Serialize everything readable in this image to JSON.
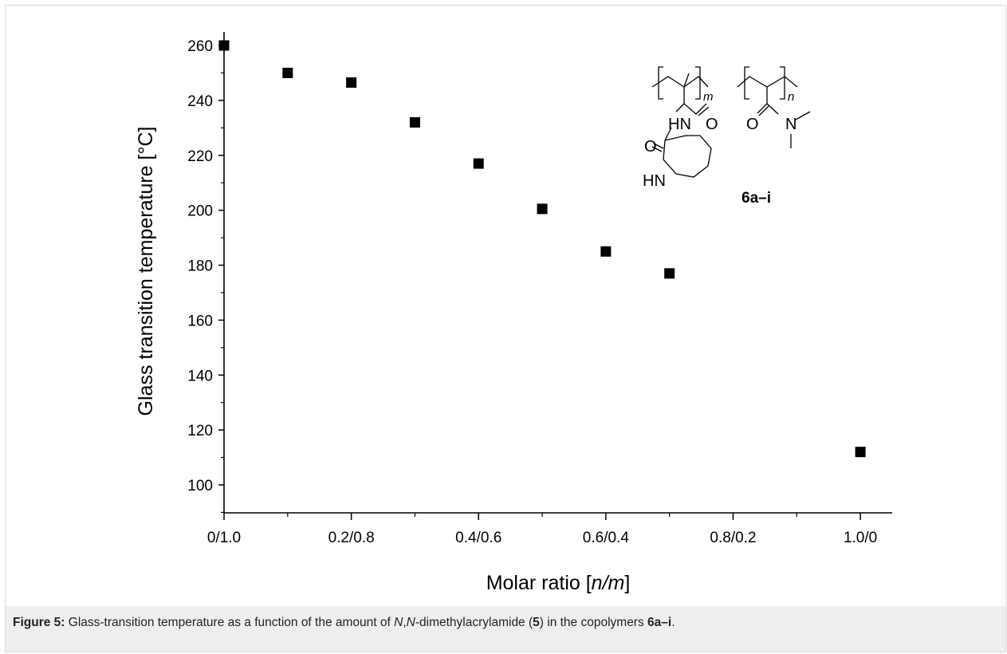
{
  "colors": {
    "marker": "#000000",
    "axis": "#000000",
    "caption_background": "#eeeeee",
    "caption_text": "#222222"
  },
  "chart_data": {
    "type": "scatter",
    "xlabel_prefix": "Molar ratio [",
    "xlabel_italic": "n/m",
    "xlabel_suffix": "]",
    "ylabel": "Glass transition temperature [°C]",
    "xlim": [
      0.0,
      1.05
    ],
    "ylim": [
      90,
      265
    ],
    "x_tick_values": [
      0.0,
      0.2,
      0.4,
      0.6,
      0.8,
      1.0
    ],
    "x_tick_labels": [
      "0/1.0",
      "0.2/0.8",
      "0.4/0.6",
      "0.6/0.4",
      "0.8/0.2",
      "1.0/0"
    ],
    "y_ticks": [
      100,
      120,
      140,
      160,
      180,
      200,
      220,
      240,
      260
    ],
    "grid": false,
    "series": [
      {
        "marker": "square",
        "x": [
          0.0,
          0.1,
          0.2,
          0.3,
          0.4,
          0.5,
          0.6,
          0.7,
          1.0
        ],
        "y": [
          260,
          250,
          246.5,
          232,
          217,
          200.5,
          185,
          177,
          112
        ]
      }
    ]
  },
  "structure": {
    "subscript_m": "m",
    "subscript_n": "n",
    "label_hn_amide": "HN",
    "label_o_amide": "O",
    "label_o_amide2": "O",
    "label_n_dimethyl": "N",
    "label_o_lactam": "O",
    "label_hn_lactam": "HN",
    "compound_label": "6a–i"
  },
  "caption": {
    "label": "Figure 5:",
    "text_1": " Glass-transition temperature as a function of the amount of ",
    "italic_n1": "N",
    "comma": ",",
    "italic_n2": "N",
    "text_2": "-dimethylacrylamide (",
    "bold_5": "5",
    "text_3": ") in the copolymers ",
    "bold_compound": "6a–i",
    "text_4": "."
  }
}
